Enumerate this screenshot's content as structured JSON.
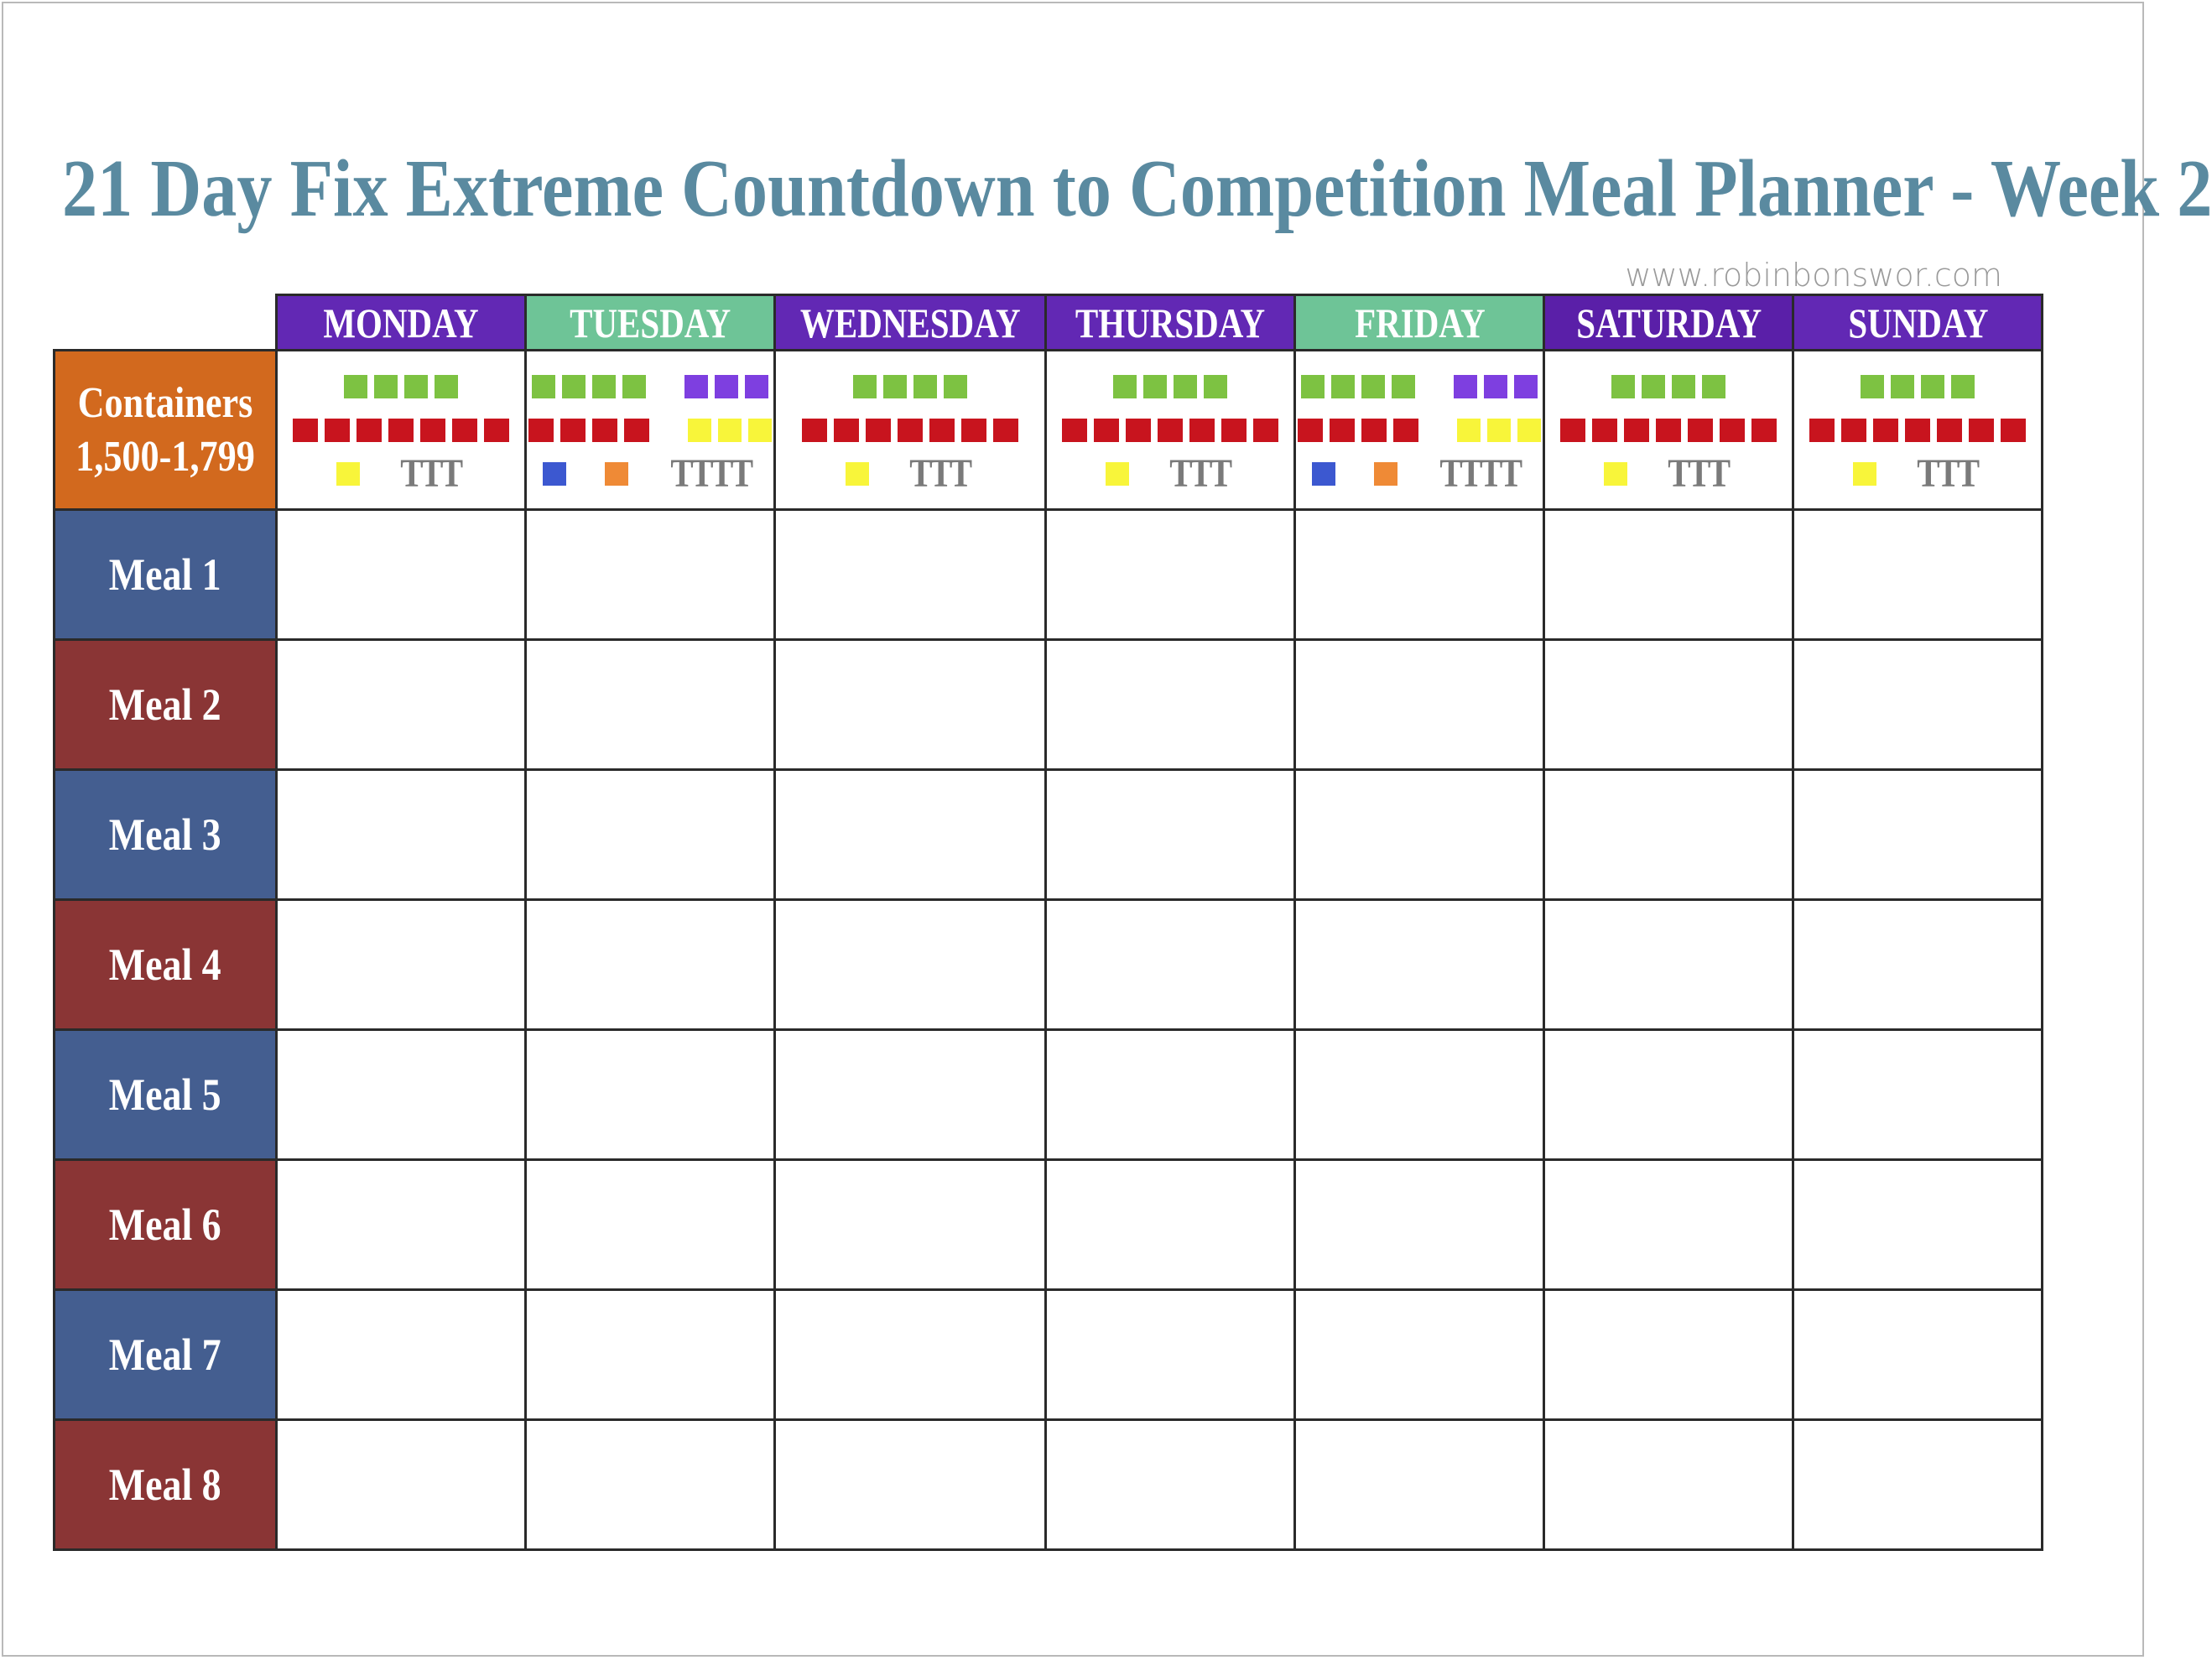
{
  "title": "21 Day Fix Extreme Countdown to Competition Meal Planner - Week 2",
  "website": "www.robinbonswor.com",
  "colors": {
    "title": "#5a8aa0",
    "website": "#9a9a9a",
    "containers_label_bg": "#d2691e",
    "meal_odd_bg": "#445e90",
    "meal_even_bg": "#8a3535",
    "green": "#7dc242",
    "red": "#c8141e",
    "purple": "#7e3fe0",
    "yellow": "#f8f53a",
    "blue": "#3c58d0",
    "orange": "#ef8a36"
  },
  "containers": {
    "line1": "Containers",
    "line2": "1,500-1,799"
  },
  "days": [
    {
      "label": "MONDAY",
      "color": "#6228b4",
      "rows": [
        [
          {
            "c": "green",
            "n": 4
          }
        ],
        [
          {
            "c": "red",
            "n": 7
          }
        ],
        [
          {
            "c": "yellow",
            "n": 1
          }
        ]
      ],
      "tsp": "TTT"
    },
    {
      "label": "TUESDAY",
      "color": "#6ec497",
      "rows": [
        [
          {
            "c": "green",
            "n": 4
          },
          {
            "c": "purple",
            "n": 3
          }
        ],
        [
          {
            "c": "red",
            "n": 4
          },
          {
            "c": "yellow",
            "n": 3
          }
        ],
        [
          {
            "c": "blue",
            "n": 1
          },
          {
            "c": "orange",
            "n": 1
          }
        ]
      ],
      "tsp": "TTTT"
    },
    {
      "label": "WEDNESDAY",
      "color": "#6228b4",
      "rows": [
        [
          {
            "c": "green",
            "n": 4
          }
        ],
        [
          {
            "c": "red",
            "n": 7
          }
        ],
        [
          {
            "c": "yellow",
            "n": 1
          }
        ]
      ],
      "tsp": "TTT"
    },
    {
      "label": "THURSDAY",
      "color": "#6228b4",
      "rows": [
        [
          {
            "c": "green",
            "n": 4
          }
        ],
        [
          {
            "c": "red",
            "n": 7
          }
        ],
        [
          {
            "c": "yellow",
            "n": 1
          }
        ]
      ],
      "tsp": "TTT"
    },
    {
      "label": "FRIDAY",
      "color": "#6ec497",
      "rows": [
        [
          {
            "c": "green",
            "n": 4
          },
          {
            "c": "purple",
            "n": 3
          }
        ],
        [
          {
            "c": "red",
            "n": 4
          },
          {
            "c": "yellow",
            "n": 3
          }
        ],
        [
          {
            "c": "blue",
            "n": 1
          },
          {
            "c": "orange",
            "n": 1
          }
        ]
      ],
      "tsp": "TTTT"
    },
    {
      "label": "SATURDAY",
      "color": "#5a1fa8",
      "rows": [
        [
          {
            "c": "green",
            "n": 4
          }
        ],
        [
          {
            "c": "red",
            "n": 7
          }
        ],
        [
          {
            "c": "yellow",
            "n": 1
          }
        ]
      ],
      "tsp": "TTT"
    },
    {
      "label": "SUNDAY",
      "color": "#6228b4",
      "rows": [
        [
          {
            "c": "green",
            "n": 4
          }
        ],
        [
          {
            "c": "red",
            "n": 7
          }
        ],
        [
          {
            "c": "yellow",
            "n": 1
          }
        ]
      ],
      "tsp": "TTT"
    }
  ],
  "meals": [
    "Meal 1",
    "Meal 2",
    "Meal 3",
    "Meal 4",
    "Meal 5",
    "Meal 6",
    "Meal 7",
    "Meal 8"
  ]
}
